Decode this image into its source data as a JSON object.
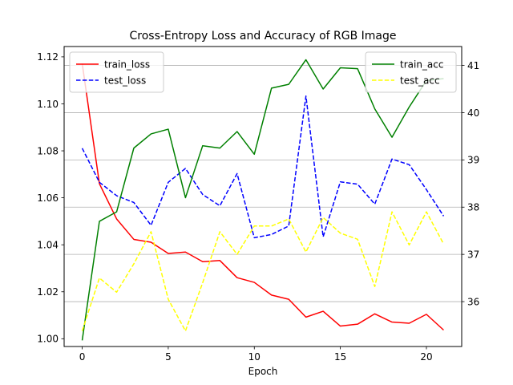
{
  "chart_data": {
    "type": "line",
    "title": "Cross-Entropy Loss and Accuracy of RGB Image",
    "xlabel": "Epoch",
    "ylabel_left": "",
    "ylabel_right": "",
    "x": [
      0,
      1,
      2,
      3,
      4,
      5,
      6,
      7,
      8,
      9,
      10,
      11,
      12,
      13,
      14,
      15,
      16,
      17,
      18,
      19,
      20,
      21
    ],
    "xlim": [
      -1.05,
      22.05
    ],
    "x_ticks": [
      0,
      5,
      10,
      15,
      20
    ],
    "x_tick_labels": [
      "0",
      "5",
      "10",
      "15",
      "20"
    ],
    "left_axis": {
      "ylim": [
        0.9967,
        1.1244
      ],
      "ticks": [
        1.0,
        1.02,
        1.04,
        1.06,
        1.08,
        1.1,
        1.12
      ],
      "tick_labels": [
        "1.00",
        "1.02",
        "1.04",
        "1.06",
        "1.08",
        "1.10",
        "1.12"
      ]
    },
    "right_axis": {
      "ylim": [
        35.05,
        41.4
      ],
      "ticks": [
        36,
        37,
        38,
        39,
        40,
        41
      ],
      "tick_labels": [
        "36",
        "37",
        "38",
        "39",
        "40",
        "41"
      ],
      "grid": true
    },
    "series": [
      {
        "name": "train_loss",
        "axis": "left",
        "color": "#ff0000",
        "dash": "solid",
        "values": [
          1.1172,
          1.066,
          1.051,
          1.0423,
          1.0411,
          1.0363,
          1.0369,
          1.0328,
          1.0333,
          1.026,
          1.024,
          1.0186,
          1.0168,
          1.0092,
          1.0117,
          1.0054,
          1.0062,
          1.0106,
          1.0071,
          1.0066,
          1.0104,
          1.0037
        ]
      },
      {
        "name": "test_loss",
        "axis": "left",
        "color": "#0000ff",
        "dash": "dashed",
        "values": [
          1.0811,
          1.0666,
          1.0609,
          1.058,
          1.0483,
          1.0666,
          1.0725,
          1.0614,
          1.0566,
          1.0703,
          1.043,
          1.0444,
          1.048,
          1.1033,
          1.0434,
          1.0668,
          1.0658,
          1.0573,
          1.0765,
          1.0741,
          1.0635,
          1.0522
        ]
      },
      {
        "name": "train_acc",
        "axis": "right",
        "color": "#008000",
        "dash": "solid",
        "values": [
          35.18,
          37.7,
          37.9,
          39.25,
          39.55,
          39.65,
          38.2,
          39.3,
          39.25,
          39.6,
          39.12,
          40.52,
          40.6,
          41.12,
          40.5,
          40.95,
          40.93,
          40.08,
          39.48,
          40.12,
          40.68,
          40.72
        ]
      },
      {
        "name": "test_acc",
        "axis": "right",
        "color": "#ffff00",
        "dash": "dashed",
        "values": [
          35.38,
          36.5,
          36.2,
          36.8,
          37.48,
          36.05,
          35.38,
          36.4,
          37.48,
          37.0,
          37.6,
          37.6,
          37.75,
          37.05,
          37.78,
          37.45,
          37.32,
          36.32,
          37.9,
          37.2,
          37.9,
          37.22
        ]
      }
    ],
    "legends": [
      {
        "position": "upper-left",
        "entries": [
          "train_loss",
          "test_loss"
        ]
      },
      {
        "position": "upper-right",
        "entries": [
          "train_acc",
          "test_acc"
        ]
      }
    ]
  }
}
